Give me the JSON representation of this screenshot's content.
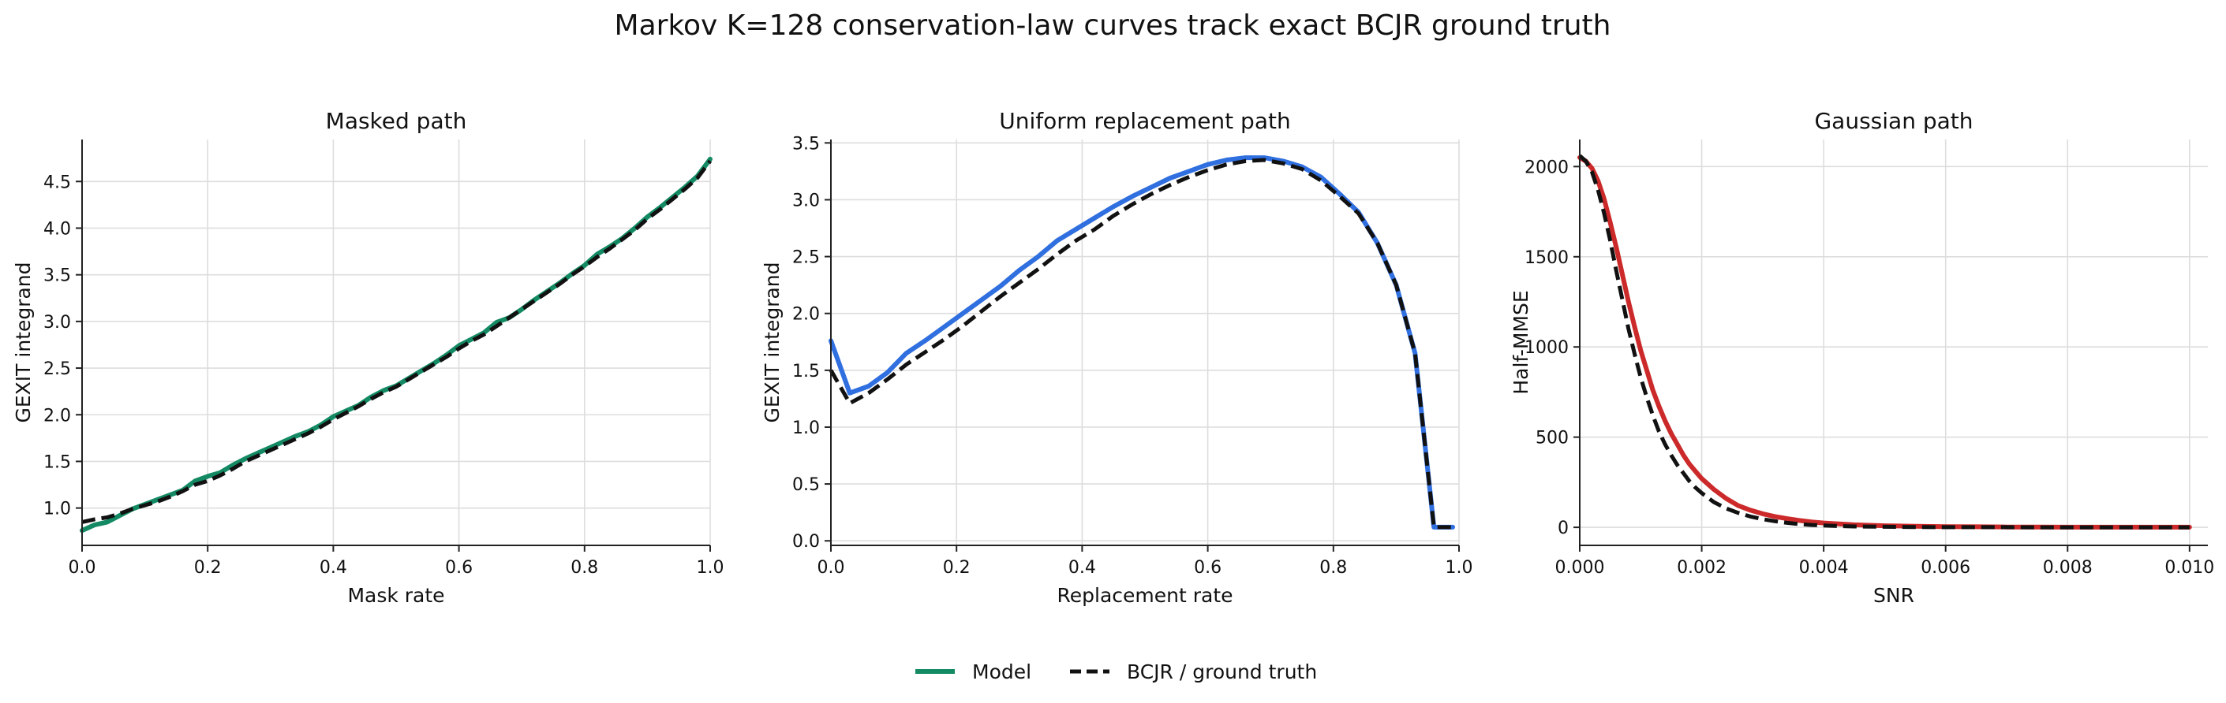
{
  "figure": {
    "title": "Markov K=128 conservation-law curves track exact BCJR ground truth",
    "legend": {
      "placement": "bottom-center",
      "entries": [
        {
          "label": "Model",
          "style": "solid"
        },
        {
          "label": "BCJR / ground truth",
          "style": "dashed"
        }
      ]
    }
  },
  "chart_data": [
    {
      "type": "line",
      "title": "Masked path",
      "xlabel": "Mask rate",
      "ylabel": "GEXIT integrand",
      "xlim": [
        0,
        1
      ],
      "ylim": [
        0.6,
        4.95
      ],
      "xticks": [
        0.0,
        0.2,
        0.4,
        0.6,
        0.8,
        1.0
      ],
      "xtick_labels": [
        "0.0",
        "0.2",
        "0.4",
        "0.6",
        "0.8",
        "1.0"
      ],
      "yticks": [
        1.0,
        1.5,
        2.0,
        2.5,
        3.0,
        3.5,
        4.0,
        4.5
      ],
      "ytick_labels": [
        "1.0",
        "1.5",
        "2.0",
        "2.5",
        "3.0",
        "3.5",
        "4.0",
        "4.5"
      ],
      "grid": true,
      "model_color": "#138a63",
      "series": [
        {
          "name": "Model",
          "x": [
            0.0,
            0.02,
            0.04,
            0.06,
            0.08,
            0.1,
            0.12,
            0.14,
            0.16,
            0.18,
            0.2,
            0.22,
            0.24,
            0.26,
            0.28,
            0.3,
            0.32,
            0.34,
            0.36,
            0.38,
            0.4,
            0.42,
            0.44,
            0.46,
            0.48,
            0.5,
            0.52,
            0.54,
            0.56,
            0.58,
            0.6,
            0.62,
            0.64,
            0.66,
            0.68,
            0.7,
            0.72,
            0.74,
            0.76,
            0.78,
            0.8,
            0.82,
            0.84,
            0.86,
            0.88,
            0.9,
            0.92,
            0.94,
            0.96,
            0.98,
            1.0
          ],
          "y": [
            0.76,
            0.82,
            0.85,
            0.92,
            0.99,
            1.04,
            1.09,
            1.14,
            1.19,
            1.29,
            1.34,
            1.38,
            1.46,
            1.53,
            1.59,
            1.65,
            1.71,
            1.77,
            1.82,
            1.89,
            1.98,
            2.04,
            2.1,
            2.19,
            2.26,
            2.31,
            2.39,
            2.47,
            2.55,
            2.64,
            2.74,
            2.81,
            2.88,
            2.99,
            3.04,
            3.13,
            3.23,
            3.32,
            3.41,
            3.51,
            3.6,
            3.72,
            3.8,
            3.89,
            4.0,
            4.12,
            4.22,
            4.33,
            4.44,
            4.56,
            4.74
          ]
        },
        {
          "name": "BCJR / ground truth",
          "x": [
            0.0,
            0.02,
            0.04,
            0.06,
            0.08,
            0.1,
            0.12,
            0.14,
            0.16,
            0.18,
            0.2,
            0.22,
            0.24,
            0.26,
            0.28,
            0.3,
            0.32,
            0.34,
            0.36,
            0.38,
            0.4,
            0.42,
            0.44,
            0.46,
            0.48,
            0.5,
            0.52,
            0.54,
            0.56,
            0.58,
            0.6,
            0.62,
            0.64,
            0.66,
            0.68,
            0.7,
            0.72,
            0.74,
            0.76,
            0.78,
            0.8,
            0.82,
            0.84,
            0.86,
            0.88,
            0.9,
            0.92,
            0.94,
            0.96,
            0.98,
            1.0
          ],
          "y": [
            0.85,
            0.88,
            0.9,
            0.94,
            0.99,
            1.03,
            1.07,
            1.12,
            1.18,
            1.25,
            1.29,
            1.35,
            1.42,
            1.5,
            1.56,
            1.62,
            1.68,
            1.74,
            1.8,
            1.87,
            1.95,
            2.02,
            2.09,
            2.17,
            2.24,
            2.3,
            2.38,
            2.46,
            2.54,
            2.62,
            2.71,
            2.79,
            2.86,
            2.95,
            3.04,
            3.13,
            3.22,
            3.31,
            3.4,
            3.5,
            3.59,
            3.69,
            3.78,
            3.88,
            3.98,
            4.1,
            4.2,
            4.31,
            4.42,
            4.54,
            4.72
          ]
        }
      ]
    },
    {
      "type": "line",
      "title": "Uniform replacement path",
      "xlabel": "Replacement rate",
      "ylabel": "GEXIT integrand",
      "xlim": [
        0,
        1
      ],
      "ylim": [
        -0.04,
        3.53
      ],
      "xticks": [
        0.0,
        0.2,
        0.4,
        0.6,
        0.8,
        1.0
      ],
      "xtick_labels": [
        "0.0",
        "0.2",
        "0.4",
        "0.6",
        "0.8",
        "1.0"
      ],
      "yticks": [
        0.0,
        0.5,
        1.0,
        1.5,
        2.0,
        2.5,
        3.0,
        3.5
      ],
      "ytick_labels": [
        "0.0",
        "0.5",
        "1.0",
        "1.5",
        "2.0",
        "2.5",
        "3.0",
        "3.5"
      ],
      "grid": true,
      "model_color": "#2f6fdf",
      "series": [
        {
          "name": "Model",
          "x": [
            0.0,
            0.03,
            0.06,
            0.09,
            0.12,
            0.15,
            0.18,
            0.21,
            0.24,
            0.27,
            0.3,
            0.33,
            0.36,
            0.39,
            0.42,
            0.45,
            0.48,
            0.51,
            0.54,
            0.57,
            0.6,
            0.63,
            0.66,
            0.69,
            0.72,
            0.75,
            0.78,
            0.81,
            0.84,
            0.87,
            0.9,
            0.93,
            0.96,
            0.99
          ],
          "y": [
            1.76,
            1.3,
            1.36,
            1.48,
            1.65,
            1.76,
            1.88,
            2.0,
            2.12,
            2.24,
            2.38,
            2.5,
            2.64,
            2.74,
            2.84,
            2.94,
            3.03,
            3.11,
            3.19,
            3.25,
            3.31,
            3.35,
            3.37,
            3.37,
            3.34,
            3.29,
            3.2,
            3.05,
            2.89,
            2.62,
            2.25,
            1.65,
            0.12,
            0.12
          ]
        },
        {
          "name": "BCJR / ground truth",
          "x": [
            0.0,
            0.03,
            0.06,
            0.09,
            0.12,
            0.15,
            0.18,
            0.21,
            0.24,
            0.27,
            0.3,
            0.33,
            0.36,
            0.39,
            0.42,
            0.45,
            0.48,
            0.51,
            0.54,
            0.57,
            0.6,
            0.63,
            0.66,
            0.69,
            0.72,
            0.75,
            0.78,
            0.81,
            0.84,
            0.87,
            0.9,
            0.93,
            0.96,
            0.99
          ],
          "y": [
            1.5,
            1.21,
            1.3,
            1.42,
            1.55,
            1.66,
            1.77,
            1.89,
            2.02,
            2.15,
            2.27,
            2.39,
            2.52,
            2.64,
            2.74,
            2.86,
            2.96,
            3.05,
            3.13,
            3.2,
            3.26,
            3.31,
            3.34,
            3.35,
            3.32,
            3.27,
            3.17,
            3.03,
            2.88,
            2.62,
            2.25,
            1.65,
            0.12,
            0.12
          ]
        }
      ]
    },
    {
      "type": "line",
      "title": "Gaussian path",
      "xlabel": "SNR",
      "ylabel": "Half-MMSE",
      "xlim": [
        0,
        0.0103
      ],
      "ylim": [
        -100,
        2150
      ],
      "xticks": [
        0.0,
        0.002,
        0.004,
        0.006,
        0.008,
        0.01
      ],
      "xtick_labels": [
        "0.000",
        "0.002",
        "0.004",
        "0.006",
        "0.008",
        "0.010"
      ],
      "yticks": [
        0,
        500,
        1000,
        1500,
        2000
      ],
      "ytick_labels": [
        "0",
        "500",
        "1000",
        "1500",
        "2000"
      ],
      "grid": true,
      "model_color": "#cc2a2a",
      "series": [
        {
          "name": "Model",
          "x": [
            0.0,
            0.0001,
            0.0002,
            0.0003,
            0.0004,
            0.0005,
            0.0006,
            0.0007,
            0.0008,
            0.0009,
            0.001,
            0.0011,
            0.0012,
            0.0013,
            0.0014,
            0.0015,
            0.0016,
            0.0017,
            0.0018,
            0.0019,
            0.002,
            0.0022,
            0.0024,
            0.0026,
            0.0028,
            0.003,
            0.0032,
            0.0034,
            0.0036,
            0.0038,
            0.004,
            0.0045,
            0.005,
            0.0055,
            0.006,
            0.0065,
            0.007,
            0.0075,
            0.008,
            0.0085,
            0.009,
            0.0095,
            0.01
          ],
          "y": [
            2050,
            2030,
            1990,
            1920,
            1820,
            1690,
            1550,
            1400,
            1250,
            1110,
            980,
            870,
            760,
            670,
            590,
            520,
            460,
            400,
            350,
            310,
            270,
            210,
            160,
            120,
            95,
            75,
            60,
            48,
            38,
            30,
            24,
            14,
            9,
            6,
            4,
            3,
            2,
            2,
            1,
            1,
            1,
            1,
            1
          ]
        },
        {
          "name": "BCJR / ground truth",
          "x": [
            0.0,
            0.0001,
            0.0002,
            0.0003,
            0.0004,
            0.0005,
            0.0006,
            0.0007,
            0.0008,
            0.0009,
            0.001,
            0.0011,
            0.0012,
            0.0013,
            0.0014,
            0.0015,
            0.0016,
            0.0017,
            0.0018,
            0.0019,
            0.002,
            0.0022,
            0.0024,
            0.0026,
            0.0028,
            0.003,
            0.0032,
            0.0034,
            0.0036,
            0.0038,
            0.004,
            0.0045,
            0.005,
            0.0055,
            0.006,
            0.0065,
            0.007,
            0.0075,
            0.008,
            0.0085,
            0.009,
            0.0095,
            0.01
          ],
          "y": [
            2060,
            2030,
            1970,
            1870,
            1740,
            1590,
            1420,
            1260,
            1100,
            960,
            830,
            720,
            620,
            530,
            460,
            400,
            345,
            300,
            255,
            220,
            190,
            140,
            105,
            80,
            60,
            45,
            34,
            25,
            18,
            13,
            10,
            5,
            3,
            2,
            1,
            1,
            1,
            0,
            0,
            0,
            0,
            0,
            0
          ]
        }
      ]
    }
  ]
}
